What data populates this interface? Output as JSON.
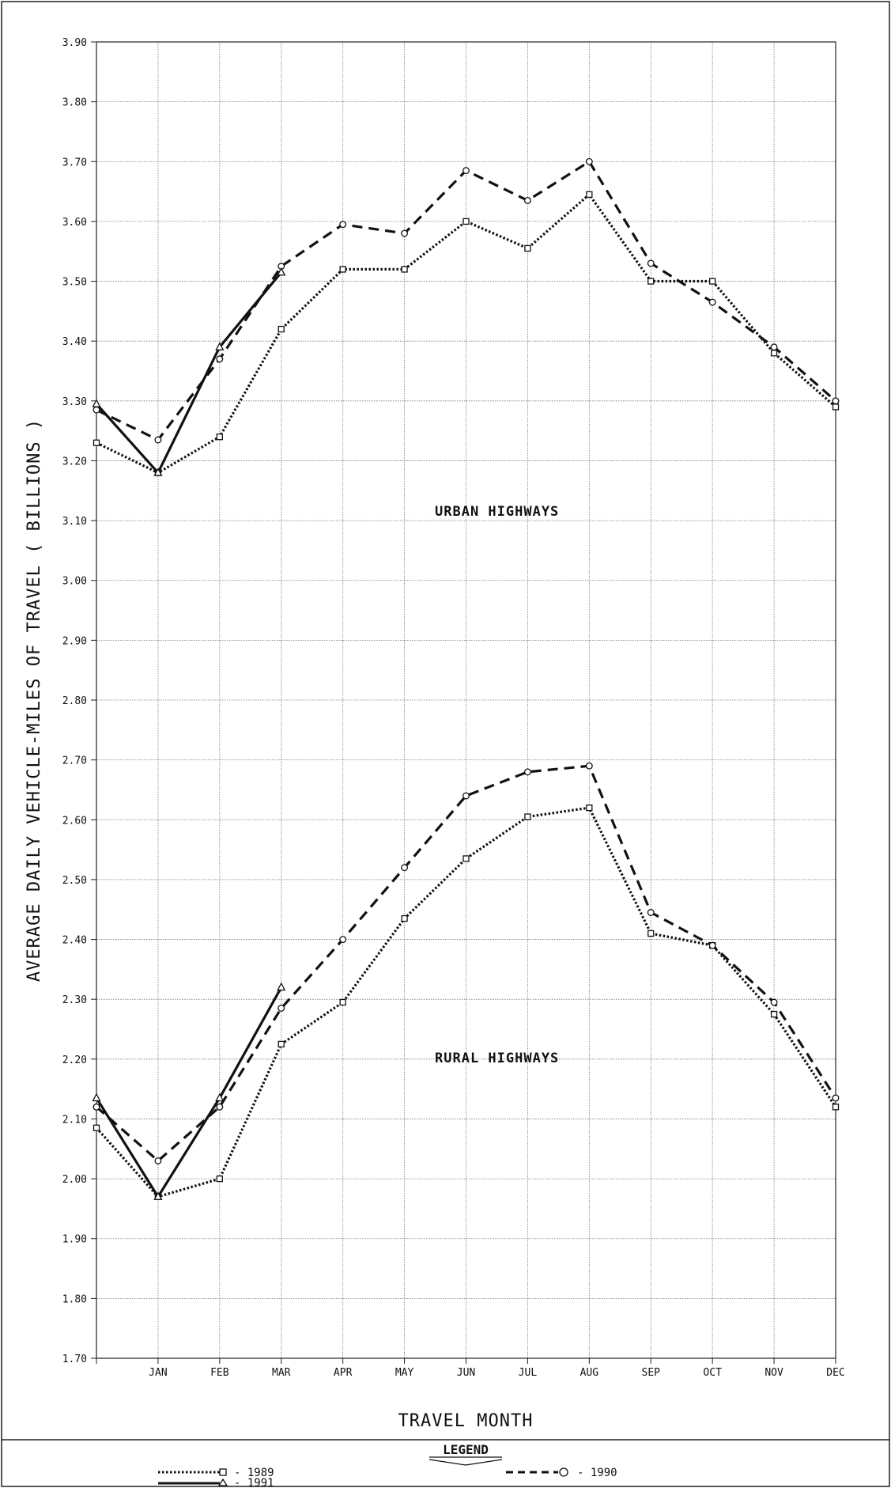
{
  "chart_data": {
    "type": "line",
    "title": "",
    "xlabel": "TRAVEL MONTH",
    "ylabel": "AVERAGE DAILY VEHICLE-MILES OF TRAVEL ( BILLIONS )",
    "ylim": [
      1.7,
      3.9
    ],
    "y_ticks": [
      "1.70",
      "1.80",
      "1.90",
      "2.00",
      "2.10",
      "2.20",
      "2.30",
      "2.40",
      "2.50",
      "2.60",
      "2.70",
      "2.80",
      "2.90",
      "3.00",
      "3.10",
      "3.20",
      "3.30",
      "3.40",
      "3.50",
      "3.60",
      "3.70",
      "3.80",
      "3.90"
    ],
    "categories": [
      "DEC",
      "JAN",
      "FEB",
      "MAR",
      "APR",
      "MAY",
      "JUN",
      "JUL",
      "AUG",
      "SEP",
      "OCT",
      "NOV",
      "DEC"
    ],
    "x_tick_labels": [
      "",
      "JAN",
      "FEB",
      "MAR",
      "APR",
      "MAY",
      "JUN",
      "JUL",
      "AUG",
      "SEP",
      "OCT",
      "NOV",
      "DEC"
    ],
    "grid": true,
    "legend_placement": "bottom",
    "annotations": [
      {
        "text": "URBAN  HIGHWAYS",
        "at_x": 7,
        "at_y": 3.135
      },
      {
        "text": "RURAL  HIGHWAYS",
        "at_x": 7,
        "at_y": 2.245
      }
    ],
    "series": [
      {
        "name": "1989",
        "group": "urban",
        "style": "dotted",
        "marker": "square",
        "values": [
          3.23,
          3.18,
          3.24,
          3.42,
          3.52,
          3.52,
          3.6,
          3.555,
          3.645,
          3.5,
          3.5,
          3.38,
          3.29
        ]
      },
      {
        "name": "1990",
        "group": "urban",
        "style": "dashed",
        "marker": "circle",
        "values": [
          3.285,
          3.235,
          3.37,
          3.525,
          3.595,
          3.58,
          3.685,
          3.635,
          3.7,
          3.53,
          3.465,
          3.39,
          3.3
        ]
      },
      {
        "name": "1991",
        "group": "urban",
        "style": "solid",
        "marker": "triangle",
        "values": [
          3.295,
          3.18,
          3.39,
          3.515,
          null,
          null,
          null,
          null,
          null,
          null,
          null,
          null,
          null
        ]
      },
      {
        "name": "1989",
        "group": "rural",
        "style": "dotted",
        "marker": "square",
        "values": [
          2.085,
          1.97,
          2.0,
          2.225,
          2.295,
          2.435,
          2.535,
          2.605,
          2.62,
          2.41,
          2.39,
          2.275,
          2.12
        ]
      },
      {
        "name": "1990",
        "group": "rural",
        "style": "dashed",
        "marker": "circle",
        "values": [
          2.12,
          2.03,
          2.12,
          2.285,
          2.4,
          2.52,
          2.64,
          2.68,
          2.69,
          2.445,
          2.39,
          2.295,
          2.135
        ]
      },
      {
        "name": "1991",
        "group": "rural",
        "style": "solid",
        "marker": "triangle",
        "values": [
          2.135,
          1.97,
          2.135,
          2.32,
          null,
          null,
          null,
          null,
          null,
          null,
          null,
          null,
          null
        ]
      }
    ]
  },
  "legend": {
    "title": "LEGEND",
    "items": [
      {
        "label": "- 1989",
        "style": "dotted",
        "marker": "square"
      },
      {
        "label": "- 1990",
        "style": "dashed",
        "marker": "circle"
      },
      {
        "label": "- 1991",
        "style": "solid",
        "marker": "triangle"
      }
    ]
  }
}
